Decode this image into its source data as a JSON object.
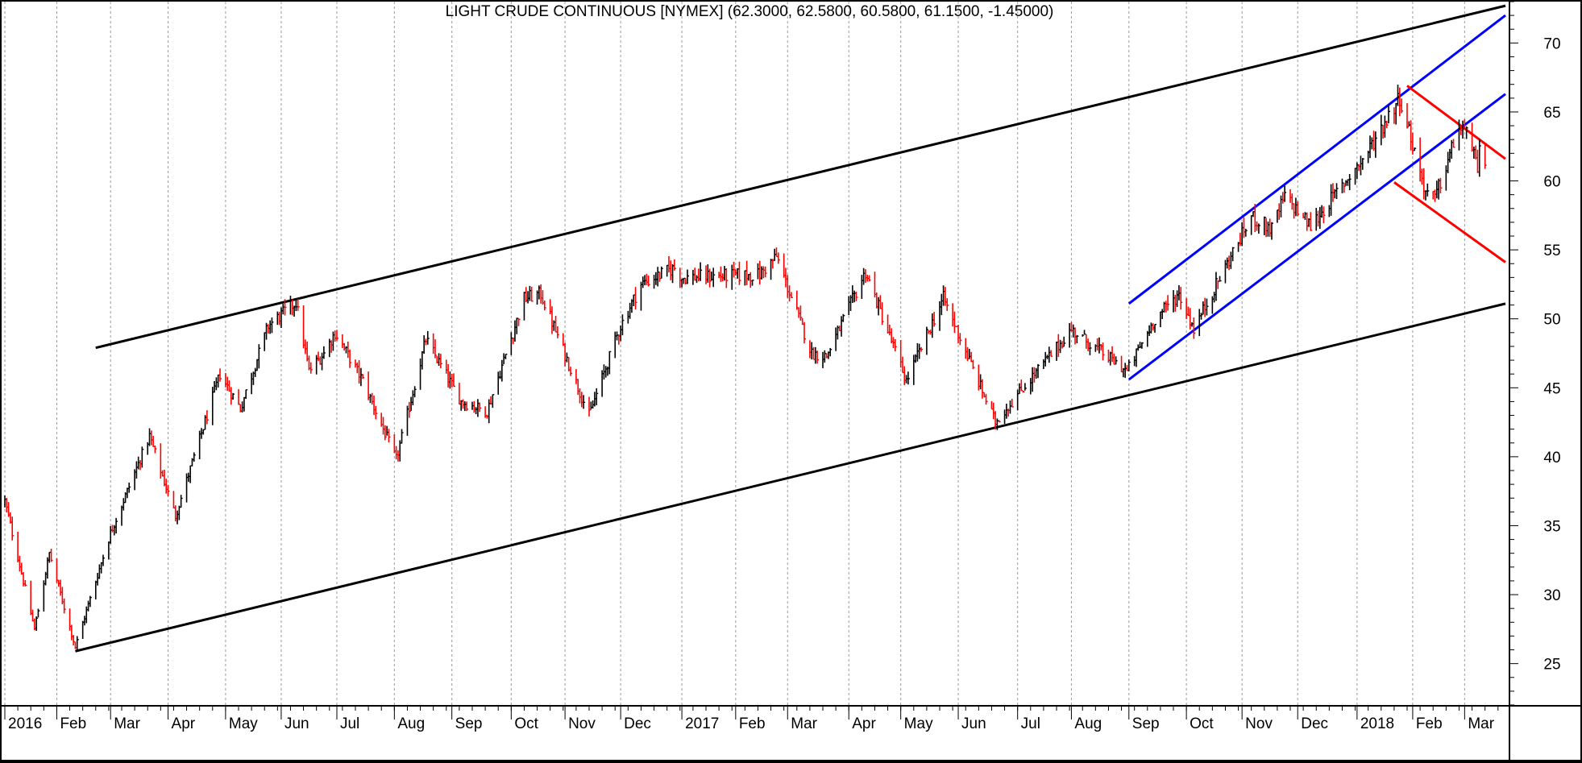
{
  "chart_data": {
    "type": "candlestick",
    "title": "LIGHT CRUDE CONTINUOUS [NYMEX] (62.3000, 62.5800, 60.5800, 61.1500, -1.45000)",
    "ylim": [
      22,
      73
    ],
    "y_ticks": [
      25,
      30,
      35,
      40,
      45,
      50,
      55,
      60,
      65,
      70
    ],
    "x_range": [
      "2016-01-04",
      "2018-03-23"
    ],
    "x_ticks": [
      {
        "label": "2016",
        "date": "2016-01-04"
      },
      {
        "label": "Feb",
        "date": "2016-02-01"
      },
      {
        "label": "Mar",
        "date": "2016-03-01"
      },
      {
        "label": "Apr",
        "date": "2016-04-01"
      },
      {
        "label": "May",
        "date": "2016-05-02"
      },
      {
        "label": "Jun",
        "date": "2016-06-01"
      },
      {
        "label": "Jul",
        "date": "2016-07-01"
      },
      {
        "label": "Aug",
        "date": "2016-08-01"
      },
      {
        "label": "Sep",
        "date": "2016-09-01"
      },
      {
        "label": "Oct",
        "date": "2016-10-03"
      },
      {
        "label": "Nov",
        "date": "2016-11-01"
      },
      {
        "label": "Dec",
        "date": "2016-12-01"
      },
      {
        "label": "2017",
        "date": "2017-01-03"
      },
      {
        "label": "Feb",
        "date": "2017-02-01"
      },
      {
        "label": "Mar",
        "date": "2017-03-01"
      },
      {
        "label": "Apr",
        "date": "2017-04-03"
      },
      {
        "label": "May",
        "date": "2017-05-01"
      },
      {
        "label": "Jun",
        "date": "2017-06-01"
      },
      {
        "label": "Jul",
        "date": "2017-07-03"
      },
      {
        "label": "Aug",
        "date": "2017-08-01"
      },
      {
        "label": "Sep",
        "date": "2017-09-01"
      },
      {
        "label": "Oct",
        "date": "2017-10-02"
      },
      {
        "label": "Nov",
        "date": "2017-11-01"
      },
      {
        "label": "Dec",
        "date": "2017-12-01"
      },
      {
        "label": "2018",
        "date": "2018-01-02"
      },
      {
        "label": "Feb",
        "date": "2018-02-01"
      },
      {
        "label": "Mar",
        "date": "2018-03-01"
      }
    ],
    "price_path": [
      [
        "2016-01-04",
        36.8
      ],
      [
        "2016-01-20",
        27.5
      ],
      [
        "2016-01-28",
        33.0
      ],
      [
        "2016-02-11",
        26.2
      ],
      [
        "2016-03-01",
        34.5
      ],
      [
        "2016-03-22",
        41.5
      ],
      [
        "2016-04-05",
        35.7
      ],
      [
        "2016-04-29",
        46.0
      ],
      [
        "2016-05-10",
        43.5
      ],
      [
        "2016-05-25",
        49.5
      ],
      [
        "2016-06-09",
        51.2
      ],
      [
        "2016-06-16",
        46.2
      ],
      [
        "2016-06-24",
        47.5
      ],
      [
        "2016-06-30",
        49.0
      ],
      [
        "2016-07-15",
        45.5
      ],
      [
        "2016-08-02",
        39.8
      ],
      [
        "2016-08-18",
        48.5
      ],
      [
        "2016-09-06",
        44.0
      ],
      [
        "2016-09-20",
        43.3
      ],
      [
        "2016-10-10",
        51.5
      ],
      [
        "2016-10-19",
        51.8
      ],
      [
        "2016-11-14",
        43.0
      ],
      [
        "2016-12-01",
        49.5
      ],
      [
        "2016-12-12",
        52.5
      ],
      [
        "2016-12-30",
        53.7
      ],
      [
        "2017-01-03",
        53.0
      ],
      [
        "2017-02-14",
        53.2
      ],
      [
        "2017-02-23",
        54.5
      ],
      [
        "2017-03-14",
        47.5
      ],
      [
        "2017-03-22",
        47.3
      ],
      [
        "2017-04-12",
        53.4
      ],
      [
        "2017-05-04",
        45.5
      ],
      [
        "2017-05-24",
        51.5
      ],
      [
        "2017-06-21",
        42.5
      ],
      [
        "2017-07-06",
        45.0
      ],
      [
        "2017-08-01",
        49.2
      ],
      [
        "2017-08-31",
        46.2
      ],
      [
        "2017-09-15",
        50.0
      ],
      [
        "2017-09-28",
        51.8
      ],
      [
        "2017-10-06",
        49.3
      ],
      [
        "2017-11-06",
        57.4
      ],
      [
        "2017-11-17",
        56.5
      ],
      [
        "2017-11-24",
        58.9
      ],
      [
        "2017-12-08",
        56.7
      ],
      [
        "2017-12-29",
        60.4
      ],
      [
        "2018-01-05",
        61.5
      ],
      [
        "2018-01-25",
        66.1
      ],
      [
        "2018-02-08",
        59.2
      ],
      [
        "2018-02-13",
        58.7
      ],
      [
        "2018-02-26",
        63.9
      ],
      [
        "2018-03-06",
        62.6
      ],
      [
        "2018-03-08",
        60.1
      ],
      [
        "2018-03-09",
        62.0
      ],
      [
        "2018-03-12",
        61.2
      ]
    ],
    "trendlines": [
      {
        "color": "#000000",
        "from": [
          "2016-02-11",
          25.9
        ],
        "to": [
          "2018-03-23",
          51.1
        ]
      },
      {
        "color": "#000000",
        "from": [
          "2016-02-22",
          47.9
        ],
        "to": [
          "2018-03-23",
          72.7
        ]
      },
      {
        "color": "#0000ff",
        "from": [
          "2017-09-01",
          45.6
        ],
        "to": [
          "2018-03-23",
          66.3
        ]
      },
      {
        "color": "#0000ff",
        "from": [
          "2017-09-01",
          51.1
        ],
        "to": [
          "2018-03-23",
          72.0
        ]
      },
      {
        "color": "#ff0000",
        "from": [
          "2018-01-29",
          66.9
        ],
        "to": [
          "2018-03-23",
          61.6
        ]
      },
      {
        "color": "#ff0000",
        "from": [
          "2018-01-22",
          59.9
        ],
        "to": [
          "2018-03-23",
          54.1
        ]
      }
    ],
    "up_color": "#000000",
    "down_color": "#ff0000",
    "grid": true
  }
}
